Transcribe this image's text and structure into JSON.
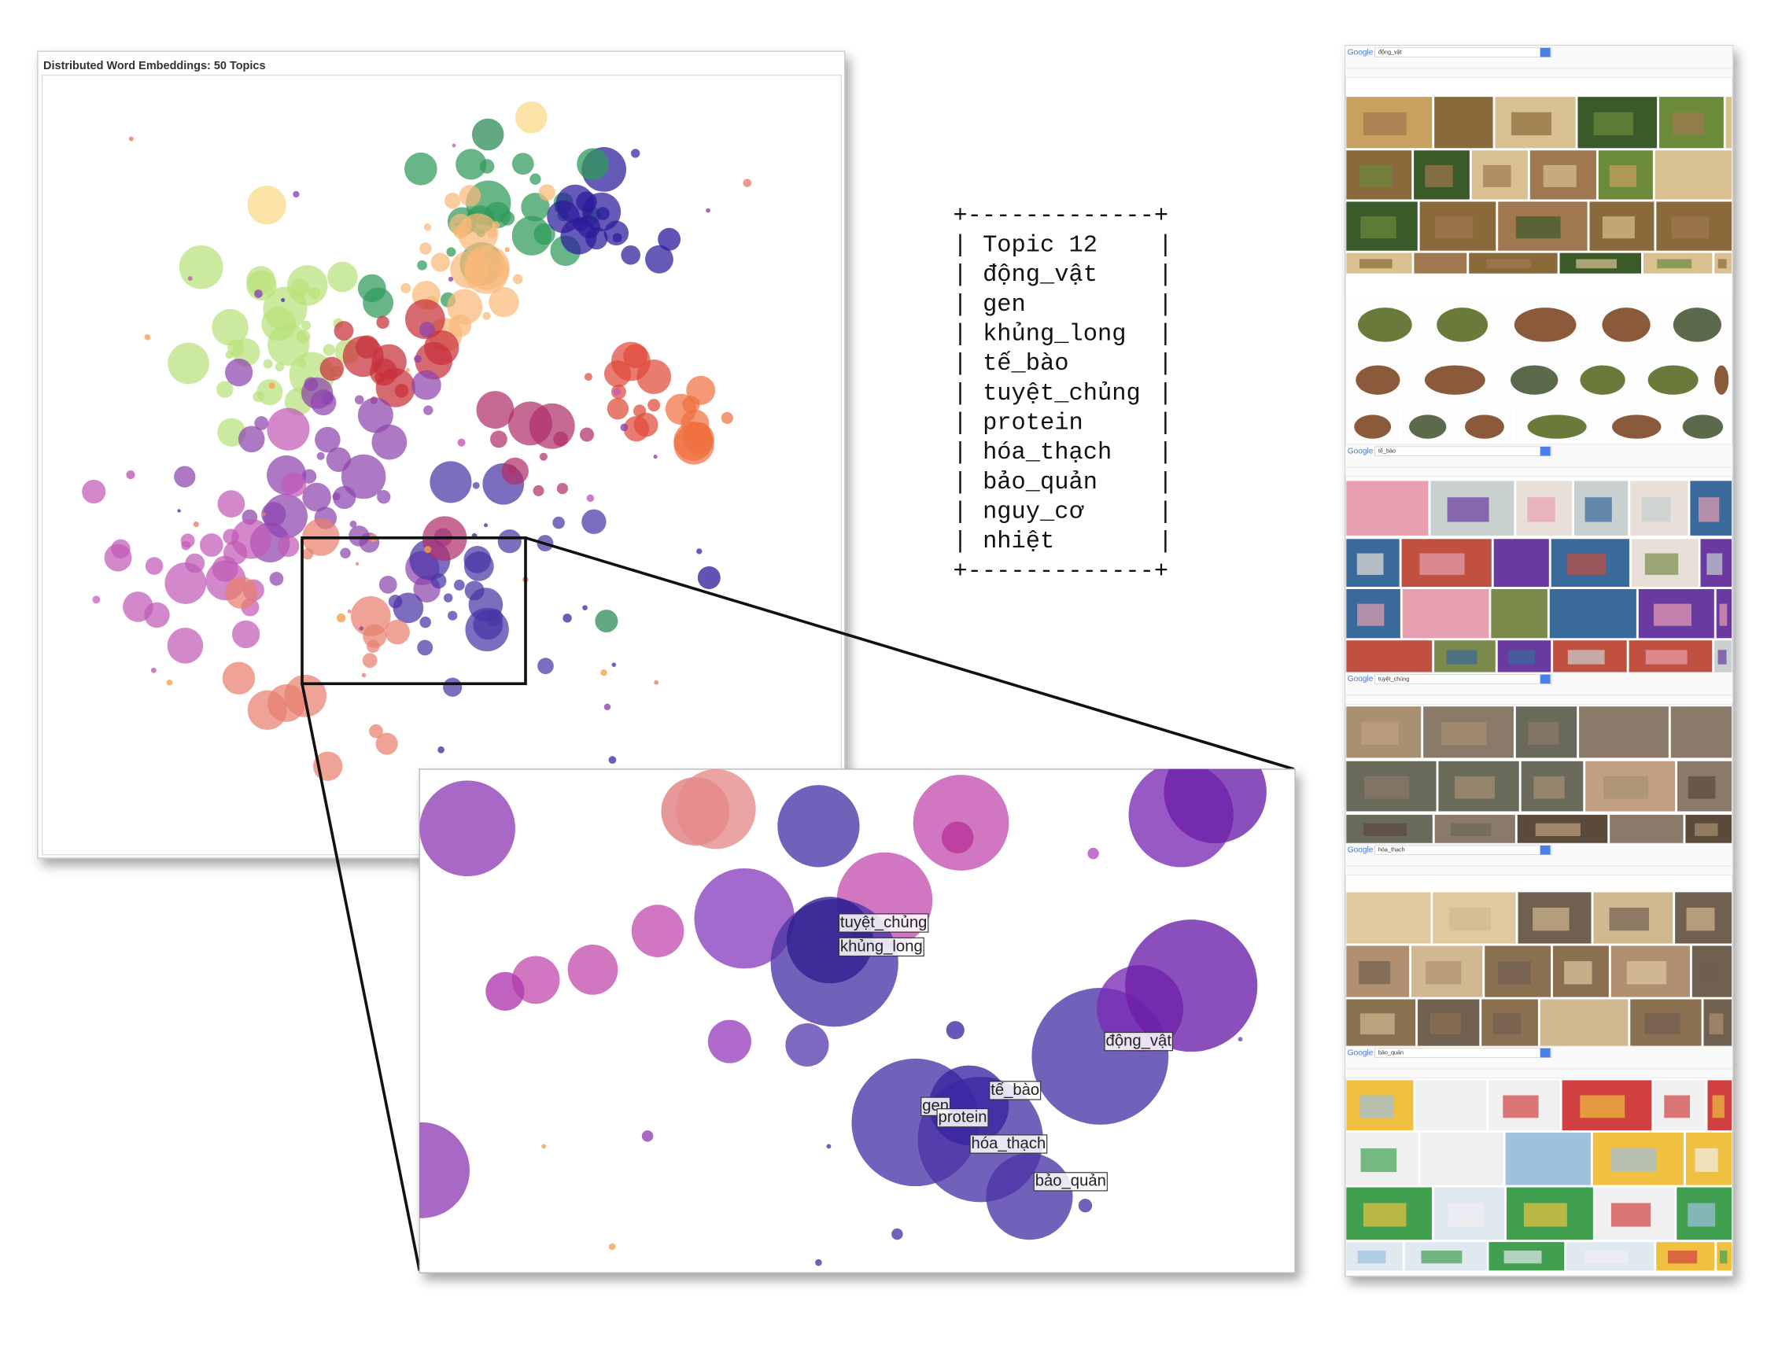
{
  "chart_panel": {
    "title": "Distributed Word Embeddings: 50 Topics"
  },
  "zoom_labels": [
    "tuyệt_chủng",
    "khủng_long",
    "động_vật",
    "tế_bào",
    "gen",
    "protein",
    "hóa_thạch",
    "bảo_quản"
  ],
  "topic_box": {
    "border": "+-------------+",
    "side": "|",
    "title": "Topic 12",
    "words": [
      "động_vật",
      "gen",
      "khủng_long",
      "tế_bào",
      "tuyệt_chủng",
      "protein",
      "hóa_thạch",
      "bảo_quản",
      "nguy_cơ",
      "nhiệt"
    ]
  },
  "google_pages": [
    {
      "logo": "Google",
      "query": "động_vật"
    },
    {
      "logo": "Google",
      "query": "tế_bào"
    },
    {
      "logo": "Google",
      "query": "tuyệt_chủng"
    },
    {
      "logo": "Google",
      "query": "hóa_thạch"
    },
    {
      "logo": "Google",
      "query": "bảo_quản"
    }
  ]
}
